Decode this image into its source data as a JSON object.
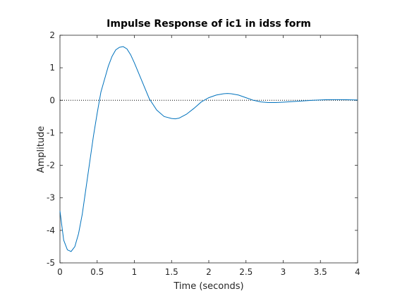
{
  "chart_data": {
    "type": "line",
    "title": "Impulse Response of ic1 in idss form",
    "xlabel": "Time (seconds)",
    "ylabel": "Amplitude",
    "x": [
      0,
      0.05,
      0.1,
      0.15,
      0.2,
      0.25,
      0.3,
      0.35,
      0.4,
      0.45,
      0.5,
      0.55,
      0.6,
      0.65,
      0.7,
      0.75,
      0.8,
      0.85,
      0.9,
      0.95,
      1.0,
      1.1,
      1.2,
      1.3,
      1.4,
      1.5,
      1.55,
      1.6,
      1.7,
      1.8,
      1.9,
      2.0,
      2.1,
      2.2,
      2.25,
      2.3,
      2.4,
      2.5,
      2.6,
      2.7,
      2.8,
      2.9,
      3.0,
      3.2,
      3.4,
      3.6,
      3.8,
      4.0
    ],
    "series": [
      {
        "color": "#0072bd",
        "values": [
          -3.4,
          -4.3,
          -4.6,
          -4.65,
          -4.5,
          -4.1,
          -3.5,
          -2.7,
          -1.9,
          -1.1,
          -0.4,
          0.25,
          0.65,
          1.05,
          1.35,
          1.55,
          1.63,
          1.65,
          1.58,
          1.4,
          1.15,
          0.6,
          0.05,
          -0.3,
          -0.5,
          -0.56,
          -0.57,
          -0.55,
          -0.43,
          -0.25,
          -0.05,
          0.08,
          0.16,
          0.2,
          0.21,
          0.2,
          0.16,
          0.08,
          0.0,
          -0.05,
          -0.07,
          -0.07,
          -0.06,
          -0.03,
          0.0,
          0.02,
          0.02,
          0.01
        ]
      }
    ],
    "reference_line": 0,
    "xlim": [
      0,
      4
    ],
    "xticks": [
      0,
      0.5,
      1,
      1.5,
      2,
      2.5,
      3,
      3.5,
      4
    ],
    "ylim": [
      -5,
      2
    ],
    "yticks": [
      -5,
      -4,
      -3,
      -2,
      -1,
      0,
      1,
      2
    ]
  }
}
